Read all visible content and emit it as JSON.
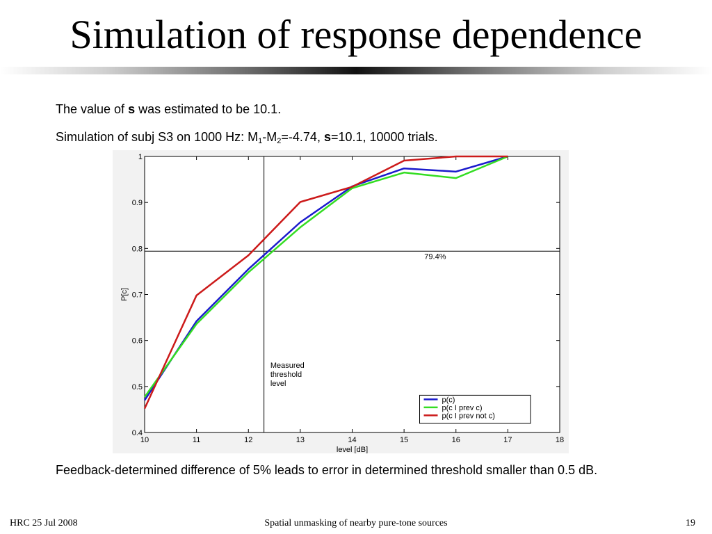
{
  "slide": {
    "title": "Simulation of response dependence",
    "line1": {
      "pre": "The value of ",
      "bold": "s",
      "post": " was estimated to be 10.1."
    },
    "line2": {
      "pre": "Simulation of subj S3 on 1000 Hz: M",
      "sub1": "1",
      "mid": "-M",
      "sub2": "2",
      "post1": "=-4.74, ",
      "bold": "s",
      "post2": "=10.1, 10000 trials."
    },
    "line3": "Feedback-determined difference of 5% leads to error in determined threshold smaller than 0.5 dB."
  },
  "footer": {
    "left": "HRC 25 Jul 2008",
    "center": "Spatial unmasking of nearby pure-tone sources",
    "page": "19"
  },
  "chart_data": {
    "type": "line",
    "title": "",
    "xlabel": "level [dB]",
    "ylabel": "P[c]",
    "xlim": [
      10,
      18
    ],
    "ylim": [
      0.4,
      1.0
    ],
    "xticks": [
      "10",
      "11",
      "12",
      "13",
      "14",
      "15",
      "16",
      "17",
      "18"
    ],
    "yticks": [
      "0.4",
      "0.5",
      "0.6",
      "0.7",
      "0.8",
      "0.9",
      "1"
    ],
    "grid": false,
    "legend_position": "bottom-right",
    "series": [
      {
        "name": "p(c)",
        "color": "#1a1acc",
        "x": [
          10,
          11,
          12,
          13,
          14,
          15,
          16,
          17
        ],
        "y": [
          0.47,
          0.642,
          0.755,
          0.857,
          0.935,
          0.974,
          0.967,
          1.0
        ]
      },
      {
        "name": "p(c I prev c)",
        "color": "#33dd22",
        "x": [
          10,
          11,
          12,
          13,
          14,
          15,
          16,
          17
        ],
        "y": [
          0.477,
          0.636,
          0.748,
          0.846,
          0.931,
          0.965,
          0.953,
          1.0
        ]
      },
      {
        "name": "p(c I prev not c)",
        "color": "#cc1a1a",
        "x": [
          10,
          11,
          12,
          13,
          14,
          15,
          16,
          17
        ],
        "y": [
          0.452,
          0.698,
          0.785,
          0.901,
          0.934,
          0.991,
          1.0,
          1.0
        ]
      }
    ],
    "reference_lines": {
      "horizontal_y": 0.794,
      "vertical_x": 12.3
    },
    "annotations": [
      {
        "text": "79.4%",
        "x": 15.6,
        "y": 0.783
      },
      {
        "text": "Measured",
        "x": 12.45,
        "y": 0.5
      },
      {
        "text": "threshold",
        "x": 12.45,
        "y": 0.5
      },
      {
        "text": "level",
        "x": 12.45,
        "y": 0.5
      }
    ]
  }
}
